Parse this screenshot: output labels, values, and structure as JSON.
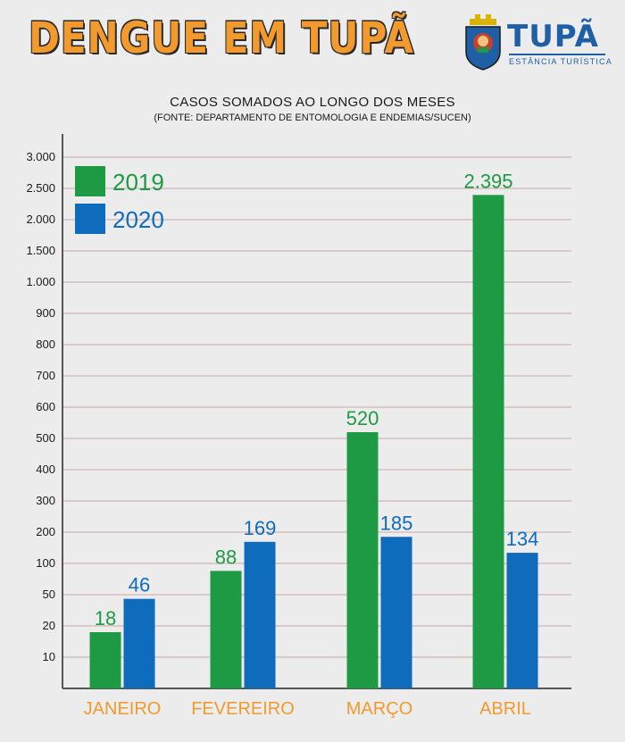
{
  "header": {
    "title": "DENGUE EM TUPÃ",
    "logo_name": "TUPÃ",
    "logo_tagline": "ESTÂNCIA TURÍSTICA"
  },
  "colors": {
    "series_2019": "#1e9a45",
    "series_2020": "#0f6cbd",
    "category_label": "#f29a2e",
    "title": "#f29a2e",
    "gridline": "#c9a7a7"
  },
  "chart_data": {
    "type": "bar",
    "title": "CASOS SOMADOS AO LONGO DOS MESES",
    "subtitle": "(FONTE: DEPARTAMENTO DE ENTOMOLOGIA E ENDEMIAS/SUCEN)",
    "categories": [
      "JANEIRO",
      "FEVEREIRO",
      "MARÇO",
      "ABRIL"
    ],
    "series": [
      {
        "name": "2019",
        "values": [
          18,
          88,
          520,
          2395
        ],
        "labels": [
          "18",
          "88",
          "520",
          "2.395"
        ]
      },
      {
        "name": "2020",
        "values": [
          46,
          169,
          185,
          134
        ],
        "labels": [
          "46",
          "169",
          "185",
          "134"
        ]
      }
    ],
    "yticks": [
      {
        "value": 10,
        "label": "10"
      },
      {
        "value": 20,
        "label": "20"
      },
      {
        "value": 50,
        "label": "50"
      },
      {
        "value": 100,
        "label": "100"
      },
      {
        "value": 200,
        "label": "200"
      },
      {
        "value": 300,
        "label": "300"
      },
      {
        "value": 400,
        "label": "400"
      },
      {
        "value": 500,
        "label": "500"
      },
      {
        "value": 600,
        "label": "600"
      },
      {
        "value": 700,
        "label": "700"
      },
      {
        "value": 800,
        "label": "800"
      },
      {
        "value": 900,
        "label": "900"
      },
      {
        "value": 1000,
        "label": "1.000"
      },
      {
        "value": 1500,
        "label": "1.500"
      },
      {
        "value": 2000,
        "label": "2.000"
      },
      {
        "value": 2500,
        "label": "2.500"
      },
      {
        "value": 3000,
        "label": "3.000"
      }
    ],
    "xlabel": "",
    "ylabel": "",
    "ylim": [
      0,
      3000
    ],
    "y_scale": "non-uniform (tick labels evenly spaced)",
    "grid": true,
    "legend": "top-left"
  }
}
